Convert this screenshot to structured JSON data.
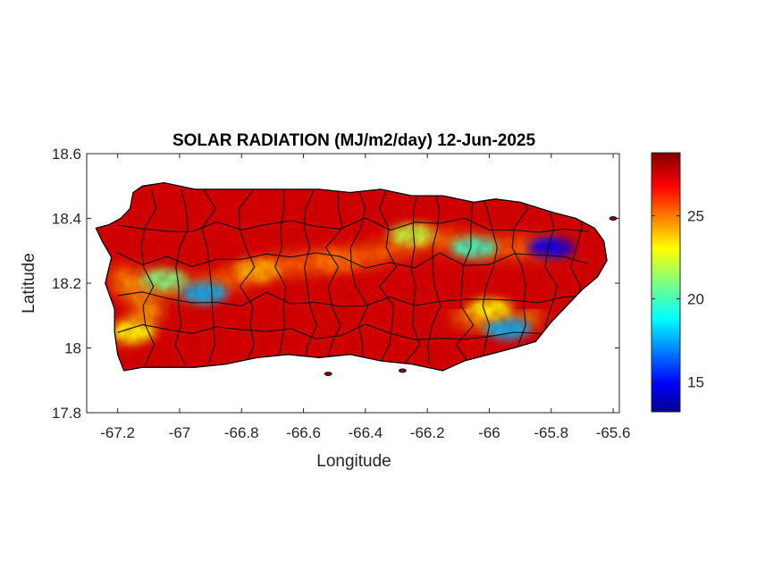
{
  "chart_data": {
    "type": "heatmap",
    "title": "SOLAR RADIATION (MJ/m2/day) 12-Jun-2025",
    "xlabel": "Longitude",
    "ylabel": "Latitude",
    "xlim": [
      -67.3,
      -65.58
    ],
    "ylim": [
      17.8,
      18.6
    ],
    "xticks": [
      -67.2,
      -67,
      -66.8,
      -66.6,
      -66.4,
      -66.2,
      -66,
      -65.8,
      -65.6
    ],
    "xtick_labels": [
      "-67.2",
      "-67",
      "-66.8",
      "-66.6",
      "-66.4",
      "-66.2",
      "-66",
      "-65.8",
      "-65.6"
    ],
    "yticks": [
      17.8,
      18,
      18.2,
      18.4,
      18.6
    ],
    "ytick_labels": [
      "17.8",
      "18",
      "18.2",
      "18.4",
      "18.6"
    ],
    "colorbar": {
      "colormap": "jet",
      "range": [
        13.2,
        28.8
      ],
      "ticks": [
        15,
        20,
        25
      ],
      "tick_labels": [
        "15",
        "20",
        "25"
      ]
    },
    "value_range_note_free": true,
    "field": {
      "background": 27.5,
      "features": [
        {
          "lon": -67.05,
          "lat": 18.21,
          "value": 21
        },
        {
          "lon": -66.92,
          "lat": 18.17,
          "value": 18
        },
        {
          "lon": -66.75,
          "lat": 18.24,
          "value": 24
        },
        {
          "lon": -66.5,
          "lat": 18.27,
          "value": 25
        },
        {
          "lon": -66.25,
          "lat": 18.35,
          "value": 22
        },
        {
          "lon": -66.05,
          "lat": 18.31,
          "value": 20
        },
        {
          "lon": -65.8,
          "lat": 18.31,
          "value": 15
        },
        {
          "lon": -65.94,
          "lat": 18.06,
          "value": 18
        },
        {
          "lon": -66.0,
          "lat": 18.12,
          "value": 23
        },
        {
          "lon": -67.15,
          "lat": 18.05,
          "value": 23
        }
      ]
    },
    "grid": false,
    "legend": "colorbar-right"
  }
}
